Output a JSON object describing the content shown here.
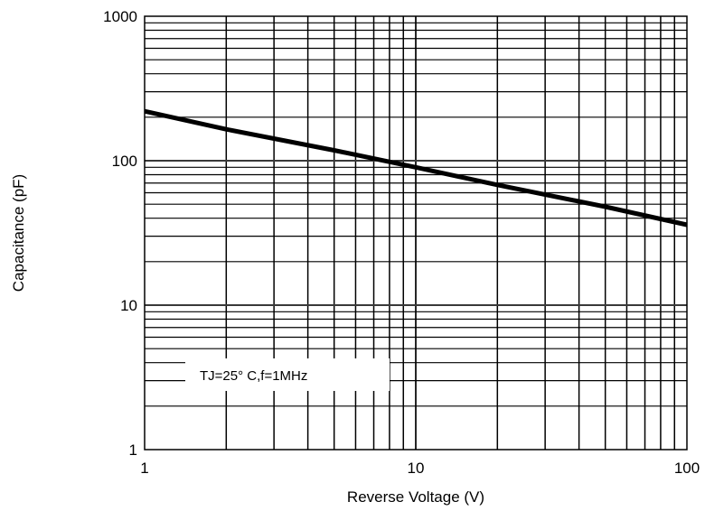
{
  "chart_data": {
    "type": "line",
    "title": "",
    "xlabel": "Reverse Voltage (V)",
    "ylabel": "Capacitance (pF)",
    "x_scale": "log",
    "y_scale": "log",
    "xlim": [
      1,
      100
    ],
    "ylim": [
      1,
      1000
    ],
    "x_ticks": [
      "1",
      "10",
      "100"
    ],
    "y_ticks": [
      "1",
      "10",
      "100",
      "1000"
    ],
    "grid": true,
    "annotation": "TJ=25° C,f=1MHz",
    "series": [
      {
        "x": [
          1,
          2,
          5,
          10,
          20,
          50,
          100
        ],
        "y": [
          220,
          165,
          118,
          90,
          68,
          48,
          36
        ]
      }
    ],
    "colors": {
      "line": "#000000",
      "grid": "#000000",
      "highlight_grid": "#999999"
    }
  }
}
